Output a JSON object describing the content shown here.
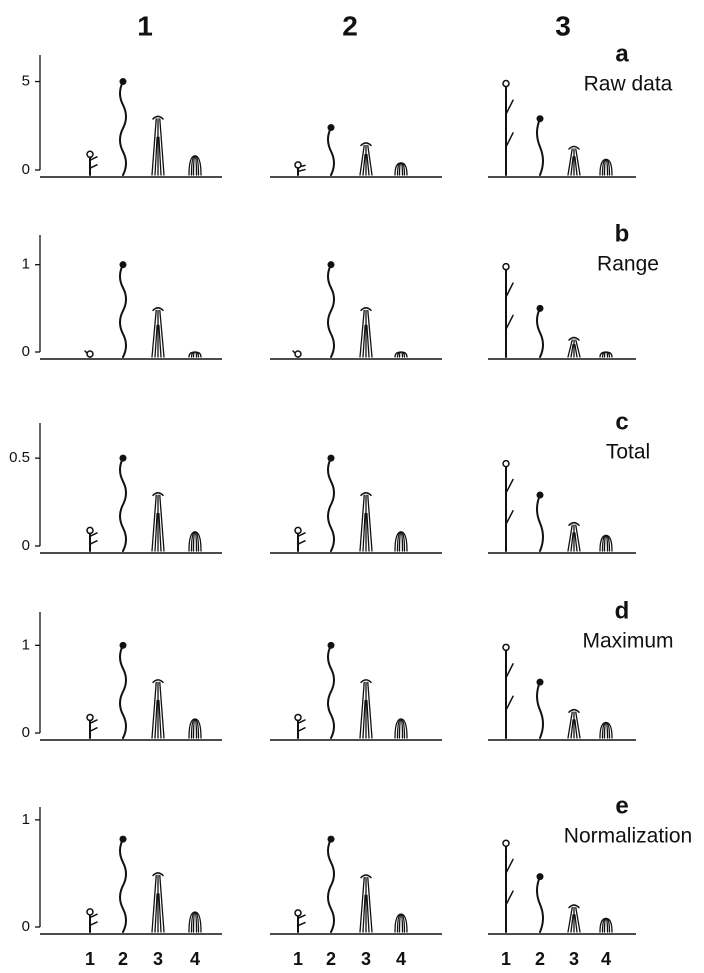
{
  "columns": [
    "1",
    "2",
    "3"
  ],
  "chart_data": [
    {
      "type": "plant",
      "label": "a",
      "title": "Raw data",
      "ylim": [
        0,
        6.5
      ],
      "yticks": [
        0,
        5
      ],
      "series": [
        {
          "values": [
            1,
            5,
            3,
            0.8
          ]
        },
        {
          "values": [
            0.4,
            2.4,
            1.5,
            0.4
          ]
        },
        {
          "values": [
            5,
            2.9,
            1.3,
            0.6
          ]
        }
      ]
    },
    {
      "type": "plant",
      "label": "b",
      "title": "Range",
      "ylim": [
        0,
        1.34
      ],
      "yticks": [
        0,
        1
      ],
      "series": [
        {
          "values": [
            0,
            1,
            0.5,
            0
          ]
        },
        {
          "values": [
            0,
            1,
            0.5,
            0
          ]
        },
        {
          "values": [
            1,
            0.5,
            0.16,
            0
          ]
        }
      ]
    },
    {
      "type": "plant",
      "label": "c",
      "title": "Total",
      "ylim": [
        0,
        0.7
      ],
      "yticks": [
        0,
        0.5
      ],
      "series": [
        {
          "values": [
            0.1,
            0.5,
            0.3,
            0.08
          ]
        },
        {
          "values": [
            0.1,
            0.5,
            0.3,
            0.08
          ]
        },
        {
          "values": [
            0.48,
            0.29,
            0.13,
            0.06
          ]
        }
      ]
    },
    {
      "type": "plant",
      "label": "d",
      "title": "Maximum",
      "ylim": [
        0,
        1.38
      ],
      "yticks": [
        0,
        1
      ],
      "series": [
        {
          "values": [
            0.2,
            1,
            0.6,
            0.16
          ]
        },
        {
          "values": [
            0.2,
            1,
            0.6,
            0.16
          ]
        },
        {
          "values": [
            1,
            0.58,
            0.26,
            0.12
          ]
        }
      ]
    },
    {
      "type": "plant",
      "label": "e",
      "title": "Normalization",
      "ylim": [
        0,
        1.12
      ],
      "yticks": [
        0,
        1
      ],
      "categories": [
        "1",
        "2",
        "3",
        "4"
      ],
      "series": [
        {
          "values": [
            0.16,
            0.82,
            0.5,
            0.14
          ]
        },
        {
          "values": [
            0.15,
            0.82,
            0.48,
            0.12
          ]
        },
        {
          "values": [
            0.8,
            0.47,
            0.2,
            0.08
          ]
        }
      ]
    }
  ]
}
